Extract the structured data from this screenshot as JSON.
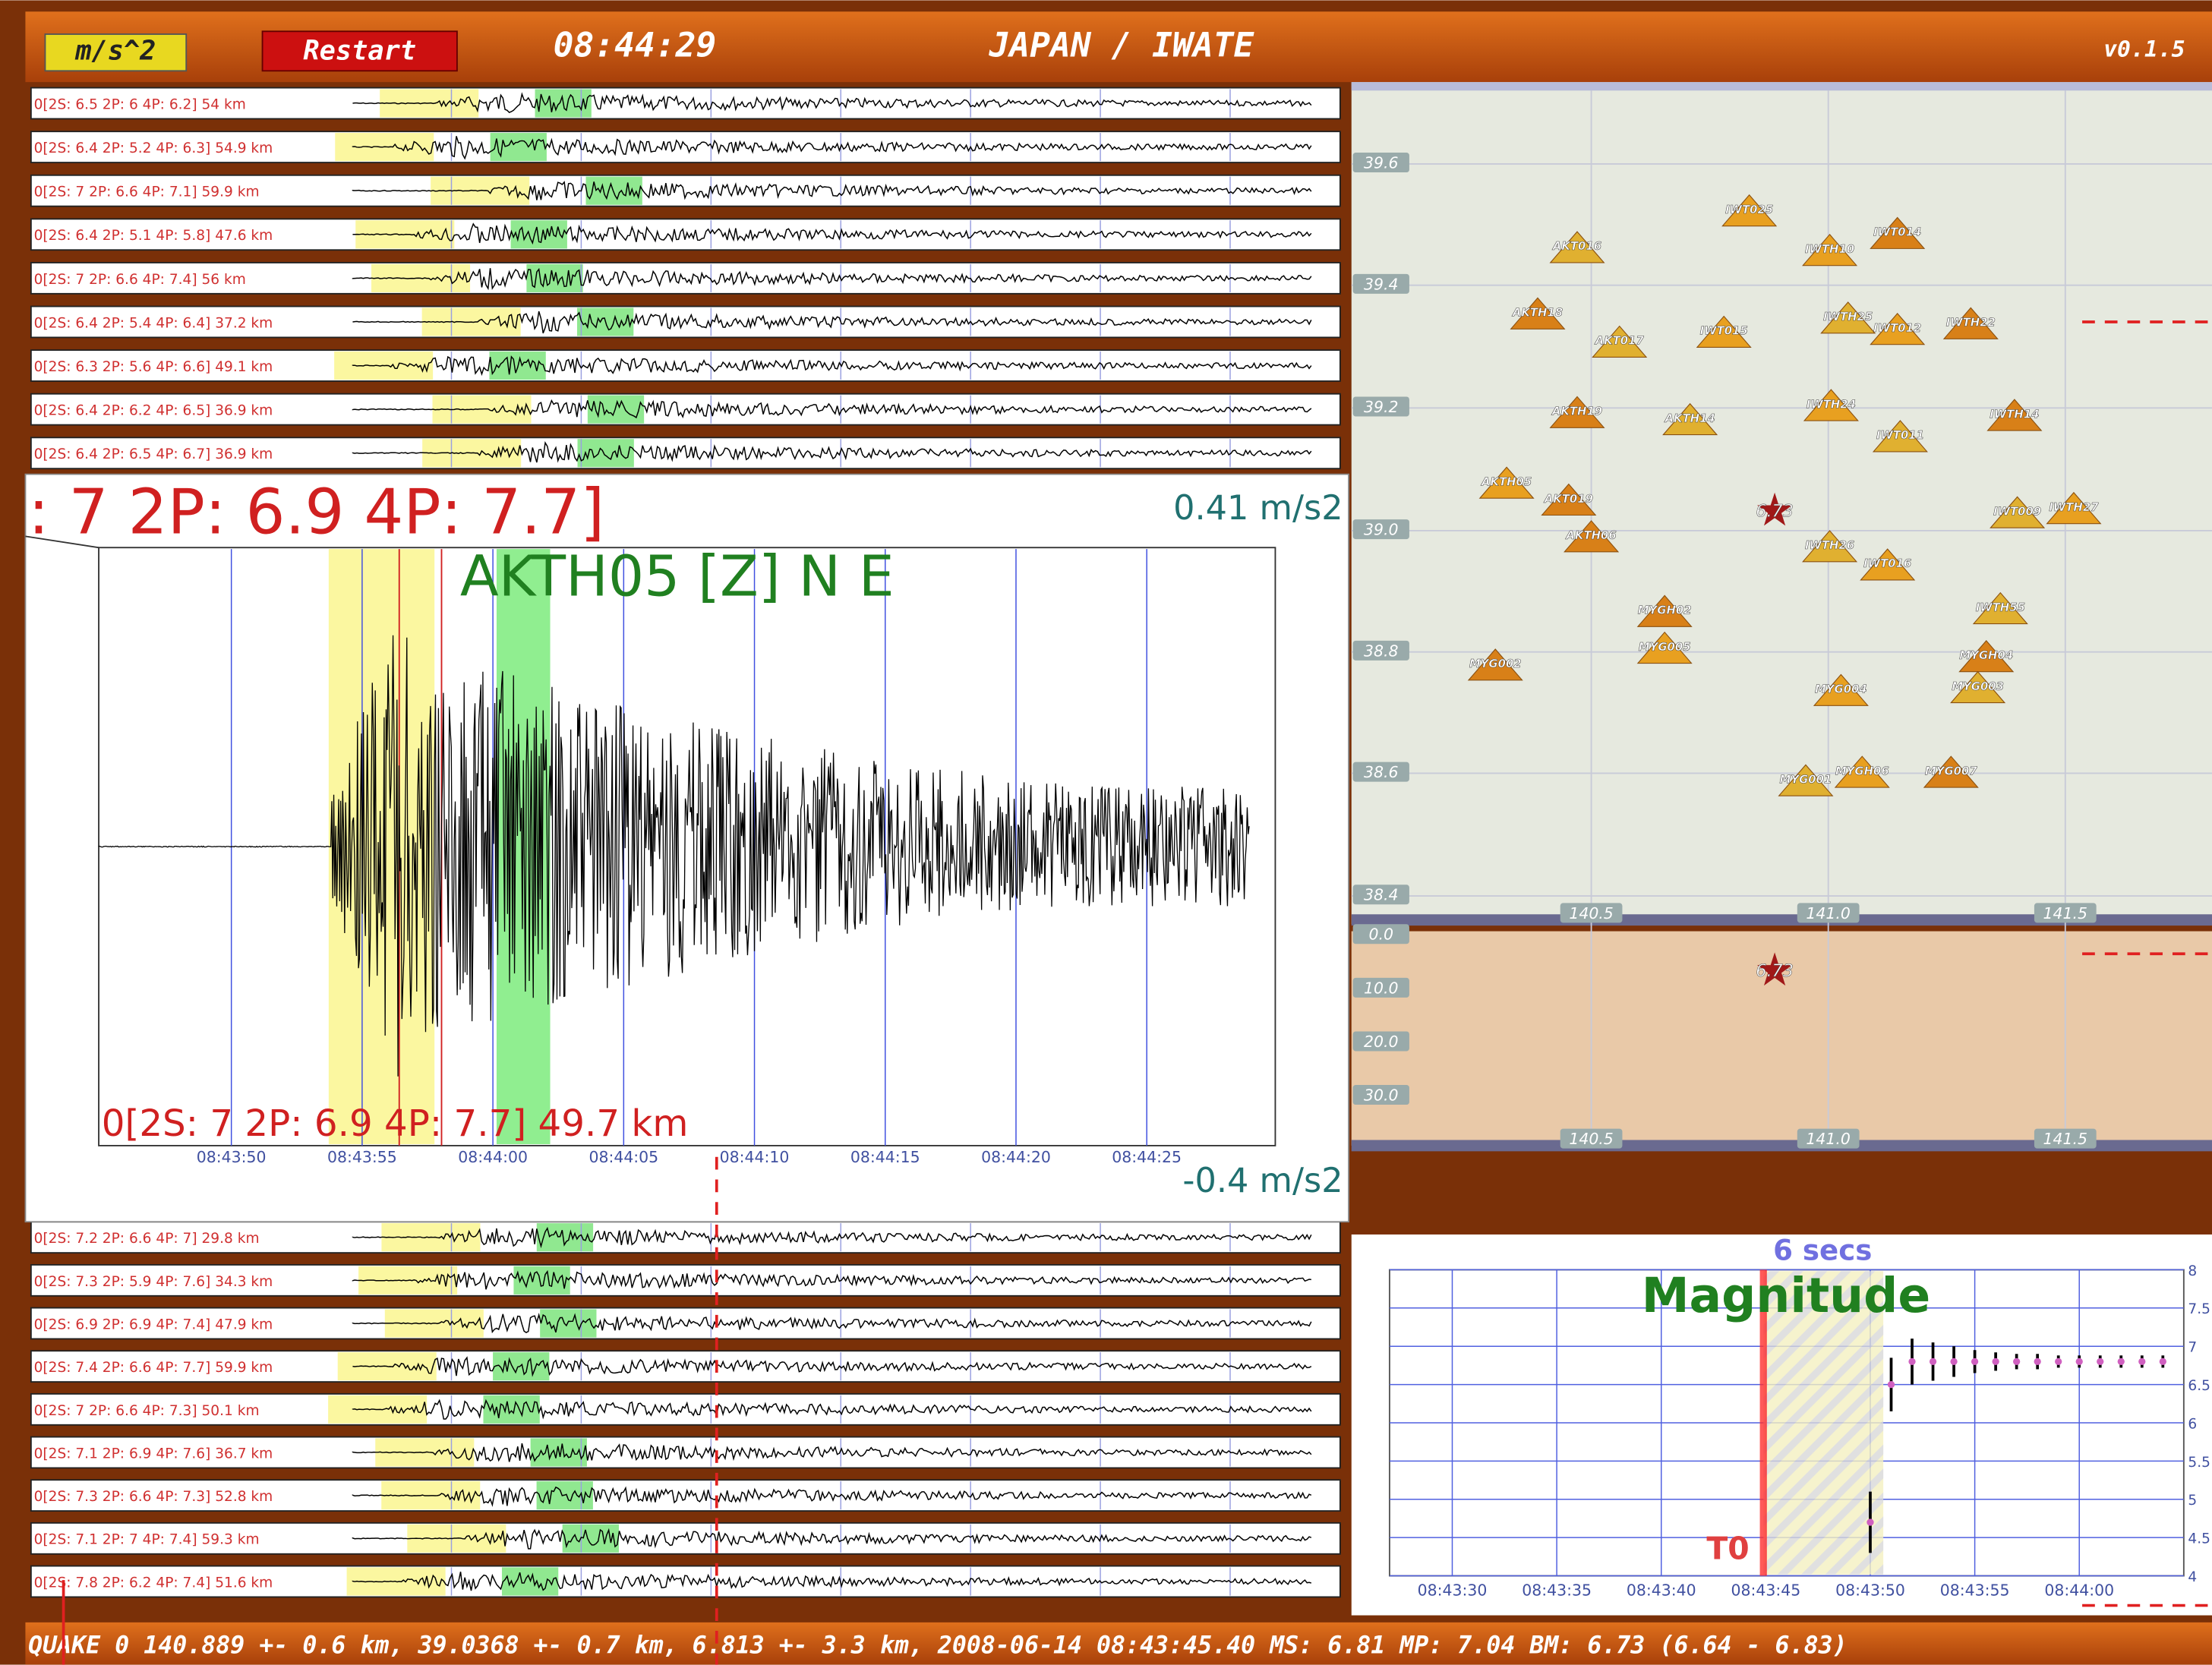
{
  "header": {
    "units": "m/s^2",
    "restart": "Restart",
    "time": "08:44:29",
    "region": "JAPAN / IWATE",
    "version": "v0.1.5"
  },
  "traces_top": [
    "0[2S: 6.5 2P: 6 4P: 6.2] 54 km",
    "0[2S: 6.4 2P: 5.2 4P: 6.3] 54.9 km",
    "0[2S: 7 2P: 6.6 4P: 7.1] 59.9 km",
    "0[2S: 6.4 2P: 5.1 4P: 5.8] 47.6 km",
    "0[2S: 7 2P: 6.6 4P: 7.4] 56 km",
    "0[2S: 6.4 2P: 5.4 4P: 6.4] 37.2 km",
    "0[2S: 6.3 2P: 5.6 4P: 6.6] 49.1 km",
    "0[2S: 6.4 2P: 6.2 4P: 6.5] 36.9 km",
    "0[2S: 6.4 2P: 6.5 4P: 6.7] 36.9 km"
  ],
  "traces_bottom": [
    "0[2S: 7.2 2P: 6.6 4P: 7] 29.8 km",
    "0[2S: 7.3 2P: 5.9 4P: 7.6] 34.3 km",
    "0[2S: 6.9 2P: 6.9 4P: 7.4] 47.9 km",
    "0[2S: 7.4 2P: 6.6 4P: 7.7] 59.9 km",
    "0[2S: 7 2P: 6.6 4P: 7.3] 50.1 km",
    "0[2S: 7.1 2P: 6.9 4P: 7.6] 36.7 km",
    "0[2S: 7.3 2P: 6.6 4P: 7.3] 52.8 km",
    "0[2S: 7.1 2P: 7 4P: 7.4] 59.3 km",
    "0[2S: 7.8 2P: 6.2 4P: 7.4] 51.6 km"
  ],
  "zoom": {
    "magnitudes": ": 7 2P: 6.9 4P: 7.7]",
    "max": "0.41 m/s2",
    "min": "-0.4 m/s2",
    "station": "AKTH05 [Z] N E",
    "label": "0[2S: 7 2P: 6.9 4P: 7.7] 49.7 km",
    "times": [
      "08:43:50",
      "08:43:55",
      "08:44:00",
      "08:44:05",
      "08:44:10",
      "08:44:15",
      "08:44:20",
      "08:44:25"
    ]
  },
  "map": {
    "lat_labels": [
      "39.6",
      "39.4",
      "39.2",
      "39.0",
      "38.8",
      "38.6",
      "38.4"
    ],
    "lon_labels": [
      "140.5",
      "141.0",
      "141.5"
    ],
    "stations": [
      "IWT025",
      "IWT014",
      "AKT016",
      "IWTH10",
      "AKTH18",
      "IWTH25",
      "IWT012",
      "IWTH22",
      "AKT017",
      "IWT015",
      "AKTH19",
      "AKTH14",
      "IWTH24",
      "IWTH14",
      "IWT011",
      "AKTH05",
      "AKT019",
      "IWT009",
      "IWTH27",
      "AKTH06",
      "IWTH26",
      "IWT016",
      "MYGH02",
      "IWTH55",
      "MYG005",
      "MYGH04",
      "MYG003",
      "MYG004",
      "MYG002",
      "MYG001",
      "MYGH06",
      "MYG007"
    ],
    "epicenter": "6.73",
    "depth_labels": [
      "0.0",
      "10.0",
      "20.0",
      "30.0"
    ]
  },
  "magnitude": {
    "title": "Magnitude",
    "window": "6 secs",
    "origin_label": "T0",
    "xticks": [
      "08:43:30",
      "08:43:35",
      "08:43:40",
      "08:43:45",
      "08:43:50",
      "08:43:55",
      "08:44:00"
    ],
    "xlim": [
      "08:43:27",
      "08:44:05"
    ],
    "ylim": [
      4,
      8
    ],
    "yticks": [
      4,
      4.5,
      5,
      5.5,
      6,
      6.5,
      7,
      7.5,
      8
    ],
    "x": [
      "08:43:50",
      "08:43:51",
      "08:43:52",
      "08:43:53",
      "08:43:54",
      "08:43:55",
      "08:43:56",
      "08:43:57",
      "08:43:58",
      "08:43:59",
      "08:44:00",
      "08:44:01",
      "08:44:02",
      "08:44:03",
      "08:44:04"
    ],
    "values": [
      4.7,
      6.5,
      6.8,
      6.8,
      6.8,
      6.8,
      6.8,
      6.8,
      6.8,
      6.8,
      6.8,
      6.8,
      6.8,
      6.8,
      6.8
    ],
    "errors": [
      0.4,
      0.35,
      0.3,
      0.25,
      0.2,
      0.15,
      0.12,
      0.1,
      0.1,
      0.08,
      0.08,
      0.08,
      0.08,
      0.08,
      0.08
    ]
  },
  "footer": "QUAKE 0 140.889 +- 0.6 km, 39.0368 +- 0.7 km, 6.813 +- 3.3 km, 2008-06-14 08:43:45.40 MS: 6.81 MP: 7.04 BM: 6.73 (6.64 - 6.83)"
}
